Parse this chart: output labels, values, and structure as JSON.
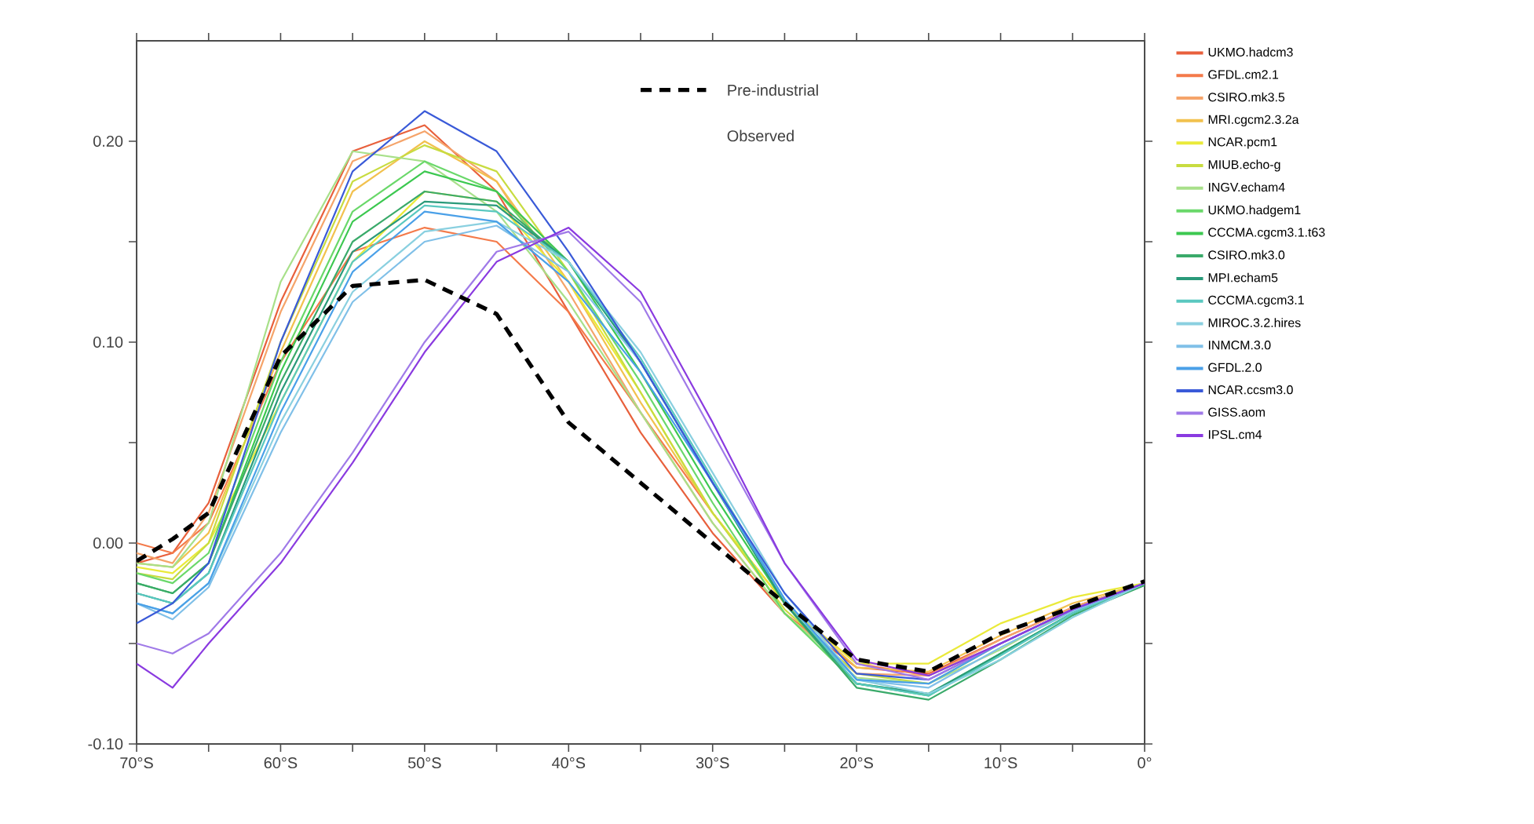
{
  "chart_data": {
    "type": "line",
    "marker": "none",
    "legend": "right",
    "grid": false,
    "x": [
      -70,
      -67.5,
      -65,
      -60,
      -55,
      -50,
      -45,
      -40,
      -35,
      -30,
      -25,
      -20,
      -15,
      -10,
      -5,
      0
    ],
    "xlim": [
      -70,
      0
    ],
    "ylim": [
      -0.1,
      0.25
    ],
    "xticks": [
      {
        "value": -70,
        "label": "70°S"
      },
      {
        "value": -65,
        "label": null
      },
      {
        "value": -60,
        "label": "60°S"
      },
      {
        "value": -55,
        "label": null
      },
      {
        "value": -50,
        "label": "50°S"
      },
      {
        "value": -45,
        "label": null
      },
      {
        "value": -40,
        "label": "40°S"
      },
      {
        "value": -35,
        "label": null
      },
      {
        "value": -30,
        "label": "30°S"
      },
      {
        "value": -25,
        "label": null
      },
      {
        "value": -20,
        "label": "20°S"
      },
      {
        "value": -15,
        "label": null
      },
      {
        "value": -10,
        "label": "10°S"
      },
      {
        "value": -5,
        "label": null
      },
      {
        "value": 0,
        "label": "0°"
      }
    ],
    "yticks": [
      {
        "value": -0.1,
        "label": "-0.10"
      },
      {
        "value": -0.05,
        "label": null
      },
      {
        "value": 0,
        "label": "0.00"
      },
      {
        "value": 0.05,
        "label": null
      },
      {
        "value": 0.1,
        "label": "0.10"
      },
      {
        "value": 0.15,
        "label": null
      },
      {
        "value": 0.2,
        "label": "0.20"
      }
    ],
    "annotations": [
      "Observed"
    ],
    "series": [
      {
        "name": "UKMO.hadcm3",
        "color": "#e8603c",
        "values": [
          -0.01,
          -0.005,
          0.02,
          0.12,
          0.195,
          0.208,
          0.175,
          0.115,
          0.055,
          0.005,
          -0.035,
          -0.062,
          -0.065,
          -0.048,
          -0.032,
          -0.02
        ]
      },
      {
        "name": "GFDL.cm2.1",
        "color": "#f47a4a",
        "values": [
          0.0,
          -0.005,
          0.01,
          0.09,
          0.145,
          0.157,
          0.15,
          0.115,
          0.065,
          0.015,
          -0.03,
          -0.06,
          -0.066,
          -0.05,
          -0.033,
          -0.02
        ]
      },
      {
        "name": "CSIRO.mk3.5",
        "color": "#f5a46a",
        "values": [
          -0.005,
          -0.01,
          0.015,
          0.115,
          0.19,
          0.205,
          0.18,
          0.125,
          0.065,
          0.01,
          -0.035,
          -0.065,
          -0.066,
          -0.048,
          -0.032,
          -0.02
        ]
      },
      {
        "name": "MRI.cgcm2.3.2a",
        "color": "#f2c14e",
        "values": [
          -0.01,
          -0.012,
          0.005,
          0.095,
          0.175,
          0.2,
          0.18,
          0.13,
          0.07,
          0.015,
          -0.03,
          -0.062,
          -0.064,
          -0.046,
          -0.03,
          -0.02
        ]
      },
      {
        "name": "NCAR.pcm1",
        "color": "#eaea3a",
        "values": [
          -0.012,
          -0.015,
          0.0,
          0.07,
          0.14,
          0.175,
          0.17,
          0.13,
          0.075,
          0.015,
          -0.03,
          -0.06,
          -0.06,
          -0.04,
          -0.027,
          -0.02
        ]
      },
      {
        "name": "MIUB.echo-g",
        "color": "#c8dc40",
        "values": [
          -0.015,
          -0.018,
          0.0,
          0.1,
          0.18,
          0.198,
          0.185,
          0.135,
          0.075,
          0.015,
          -0.033,
          -0.065,
          -0.07,
          -0.05,
          -0.033,
          -0.02
        ]
      },
      {
        "name": "INGV.echam4",
        "color": "#a8e08a",
        "values": [
          -0.01,
          -0.012,
          0.01,
          0.13,
          0.195,
          0.19,
          0.165,
          0.12,
          0.065,
          0.01,
          -0.035,
          -0.067,
          -0.07,
          -0.053,
          -0.033,
          -0.02
        ]
      },
      {
        "name": "UKMO.hadgem1",
        "color": "#6ad86a",
        "values": [
          -0.015,
          -0.02,
          -0.005,
          0.09,
          0.165,
          0.19,
          0.175,
          0.135,
          0.08,
          0.02,
          -0.035,
          -0.07,
          -0.075,
          -0.055,
          -0.035,
          -0.02
        ]
      },
      {
        "name": "CCCMA.cgcm3.1.t63",
        "color": "#3cc850",
        "values": [
          -0.02,
          -0.025,
          -0.01,
          0.085,
          0.16,
          0.185,
          0.175,
          0.14,
          0.085,
          0.025,
          -0.03,
          -0.07,
          -0.076,
          -0.055,
          -0.035,
          -0.02
        ]
      },
      {
        "name": "CSIRO.mk3.0",
        "color": "#3aaa6a",
        "values": [
          -0.02,
          -0.025,
          -0.01,
          0.08,
          0.15,
          0.175,
          0.17,
          0.14,
          0.09,
          0.03,
          -0.03,
          -0.072,
          -0.078,
          -0.058,
          -0.036,
          -0.021
        ]
      },
      {
        "name": "MPI.echam5",
        "color": "#2a9a7a",
        "values": [
          -0.025,
          -0.03,
          -0.015,
          0.075,
          0.145,
          0.17,
          0.168,
          0.14,
          0.09,
          0.03,
          -0.03,
          -0.07,
          -0.075,
          -0.055,
          -0.035,
          -0.02
        ]
      },
      {
        "name": "CCCMA.cgcm3.1",
        "color": "#5ac8c0",
        "values": [
          -0.025,
          -0.03,
          -0.015,
          0.07,
          0.14,
          0.168,
          0.165,
          0.14,
          0.092,
          0.032,
          -0.028,
          -0.07,
          -0.076,
          -0.056,
          -0.035,
          -0.02
        ]
      },
      {
        "name": "MIROC.3.2.hires",
        "color": "#8ad0e0",
        "values": [
          -0.03,
          -0.035,
          -0.02,
          0.06,
          0.125,
          0.155,
          0.16,
          0.14,
          0.095,
          0.035,
          -0.025,
          -0.068,
          -0.075,
          -0.058,
          -0.037,
          -0.02
        ]
      },
      {
        "name": "INMCM.3.0",
        "color": "#80c0e8",
        "values": [
          -0.03,
          -0.038,
          -0.022,
          0.055,
          0.12,
          0.15,
          0.158,
          0.135,
          0.09,
          0.03,
          -0.028,
          -0.068,
          -0.072,
          -0.052,
          -0.034,
          -0.02
        ]
      },
      {
        "name": "GFDL.2.0",
        "color": "#4aa0e8",
        "values": [
          -0.03,
          -0.035,
          -0.02,
          0.065,
          0.135,
          0.165,
          0.16,
          0.13,
          0.085,
          0.03,
          -0.028,
          -0.068,
          -0.07,
          -0.05,
          -0.033,
          -0.02
        ]
      },
      {
        "name": "NCAR.ccsm3.0",
        "color": "#3a5ad8",
        "values": [
          -0.04,
          -0.03,
          -0.01,
          0.1,
          0.185,
          0.215,
          0.195,
          0.145,
          0.09,
          0.03,
          -0.025,
          -0.065,
          -0.068,
          -0.05,
          -0.033,
          -0.02
        ]
      },
      {
        "name": "GISS.aom",
        "color": "#a07ae8",
        "values": [
          -0.05,
          -0.055,
          -0.045,
          -0.005,
          0.045,
          0.1,
          0.145,
          0.155,
          0.12,
          0.055,
          -0.01,
          -0.06,
          -0.068,
          -0.05,
          -0.033,
          -0.02
        ]
      },
      {
        "name": "IPSL.cm4",
        "color": "#8a3ae0",
        "values": [
          -0.06,
          -0.072,
          -0.05,
          -0.01,
          0.04,
          0.095,
          0.14,
          0.157,
          0.125,
          0.06,
          -0.01,
          -0.058,
          -0.066,
          -0.05,
          -0.033,
          -0.02
        ]
      },
      {
        "name": "Pre-industrial",
        "color": "#000000",
        "line_style": "dashed",
        "values": [
          -0.009,
          0.002,
          0.015,
          0.093,
          0.128,
          0.131,
          0.114,
          0.06,
          0.03,
          0.0,
          -0.03,
          -0.058,
          -0.064,
          -0.045,
          -0.032,
          -0.019
        ]
      }
    ]
  }
}
